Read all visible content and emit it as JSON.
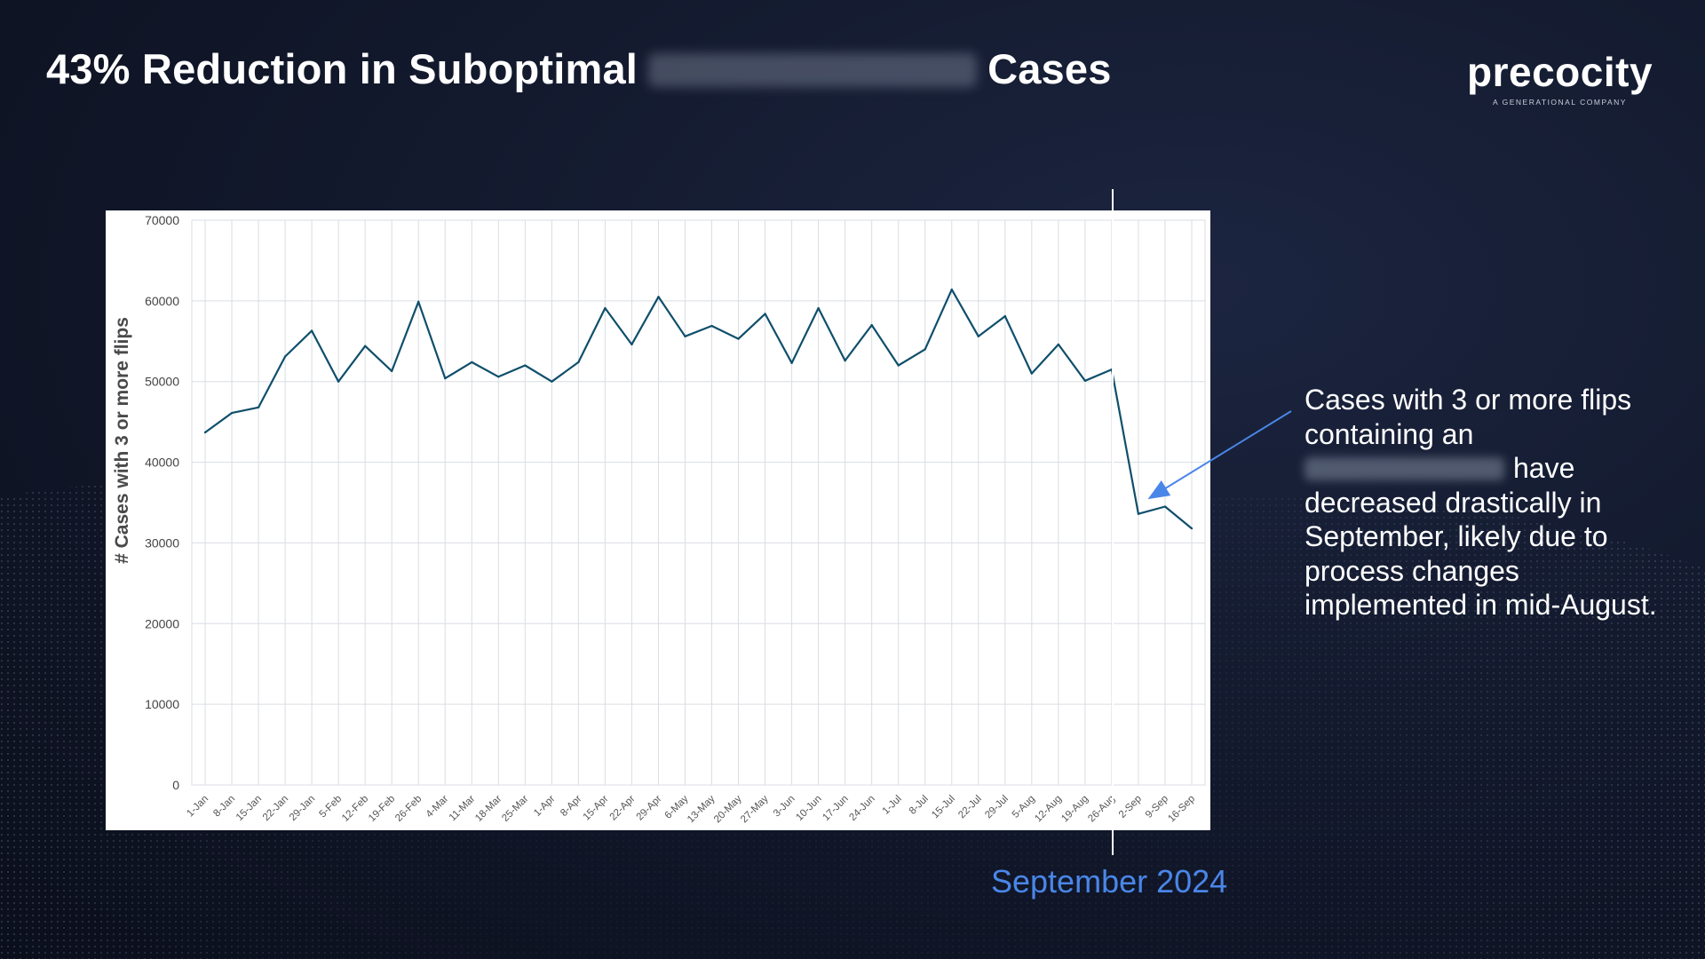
{
  "slide": {
    "title_prefix": "43% Reduction in Suboptimal",
    "title_suffix": "Cases",
    "logo_word": "precocity",
    "logo_tagline": "A GENERATIONAL COMPANY",
    "divider_label": "September 2024",
    "annotation_part1": "Cases with 3 or more flips containing an",
    "annotation_part2": "have decreased drastically in September, likely due to process changes implemented in mid-August."
  },
  "colors": {
    "line": "#0f4f6b",
    "grid": "#d9dde3",
    "divider_label": "#4a86e8",
    "arrow": "#4a86e8"
  },
  "chart_data": {
    "type": "line",
    "title": "",
    "ylabel": "# Cases with 3 or more flips",
    "xlabel": "",
    "ylim": [
      0,
      70000
    ],
    "yticks": [
      0,
      10000,
      20000,
      30000,
      40000,
      50000,
      60000,
      70000
    ],
    "grid": true,
    "categories": [
      "1-Jan",
      "8-Jan",
      "15-Jan",
      "22-Jan",
      "29-Jan",
      "5-Feb",
      "12-Feb",
      "19-Feb",
      "26-Feb",
      "4-Mar",
      "11-Mar",
      "18-Mar",
      "25-Mar",
      "1-Apr",
      "8-Apr",
      "15-Apr",
      "22-Apr",
      "29-Apr",
      "6-May",
      "13-May",
      "20-May",
      "27-May",
      "3-Jun",
      "10-Jun",
      "17-Jun",
      "24-Jun",
      "1-Jul",
      "8-Jul",
      "15-Jul",
      "22-Jul",
      "29-Jul",
      "5-Aug",
      "12-Aug",
      "19-Aug",
      "26-Aug",
      "2-Sep",
      "9-Sep",
      "16-Sep"
    ],
    "series": [
      {
        "values": [
          43700,
          46100,
          46800,
          53100,
          56300,
          50000,
          54400,
          51300,
          59900,
          50400,
          52400,
          50600,
          52000,
          50000,
          52400,
          59100,
          54600,
          60500,
          55600,
          56900,
          55300,
          58400,
          52300,
          59100,
          52600,
          57000,
          52000,
          54000,
          61400,
          55600,
          58100,
          51000,
          54600,
          50100,
          51500,
          33600,
          34500,
          31800
        ]
      }
    ]
  }
}
